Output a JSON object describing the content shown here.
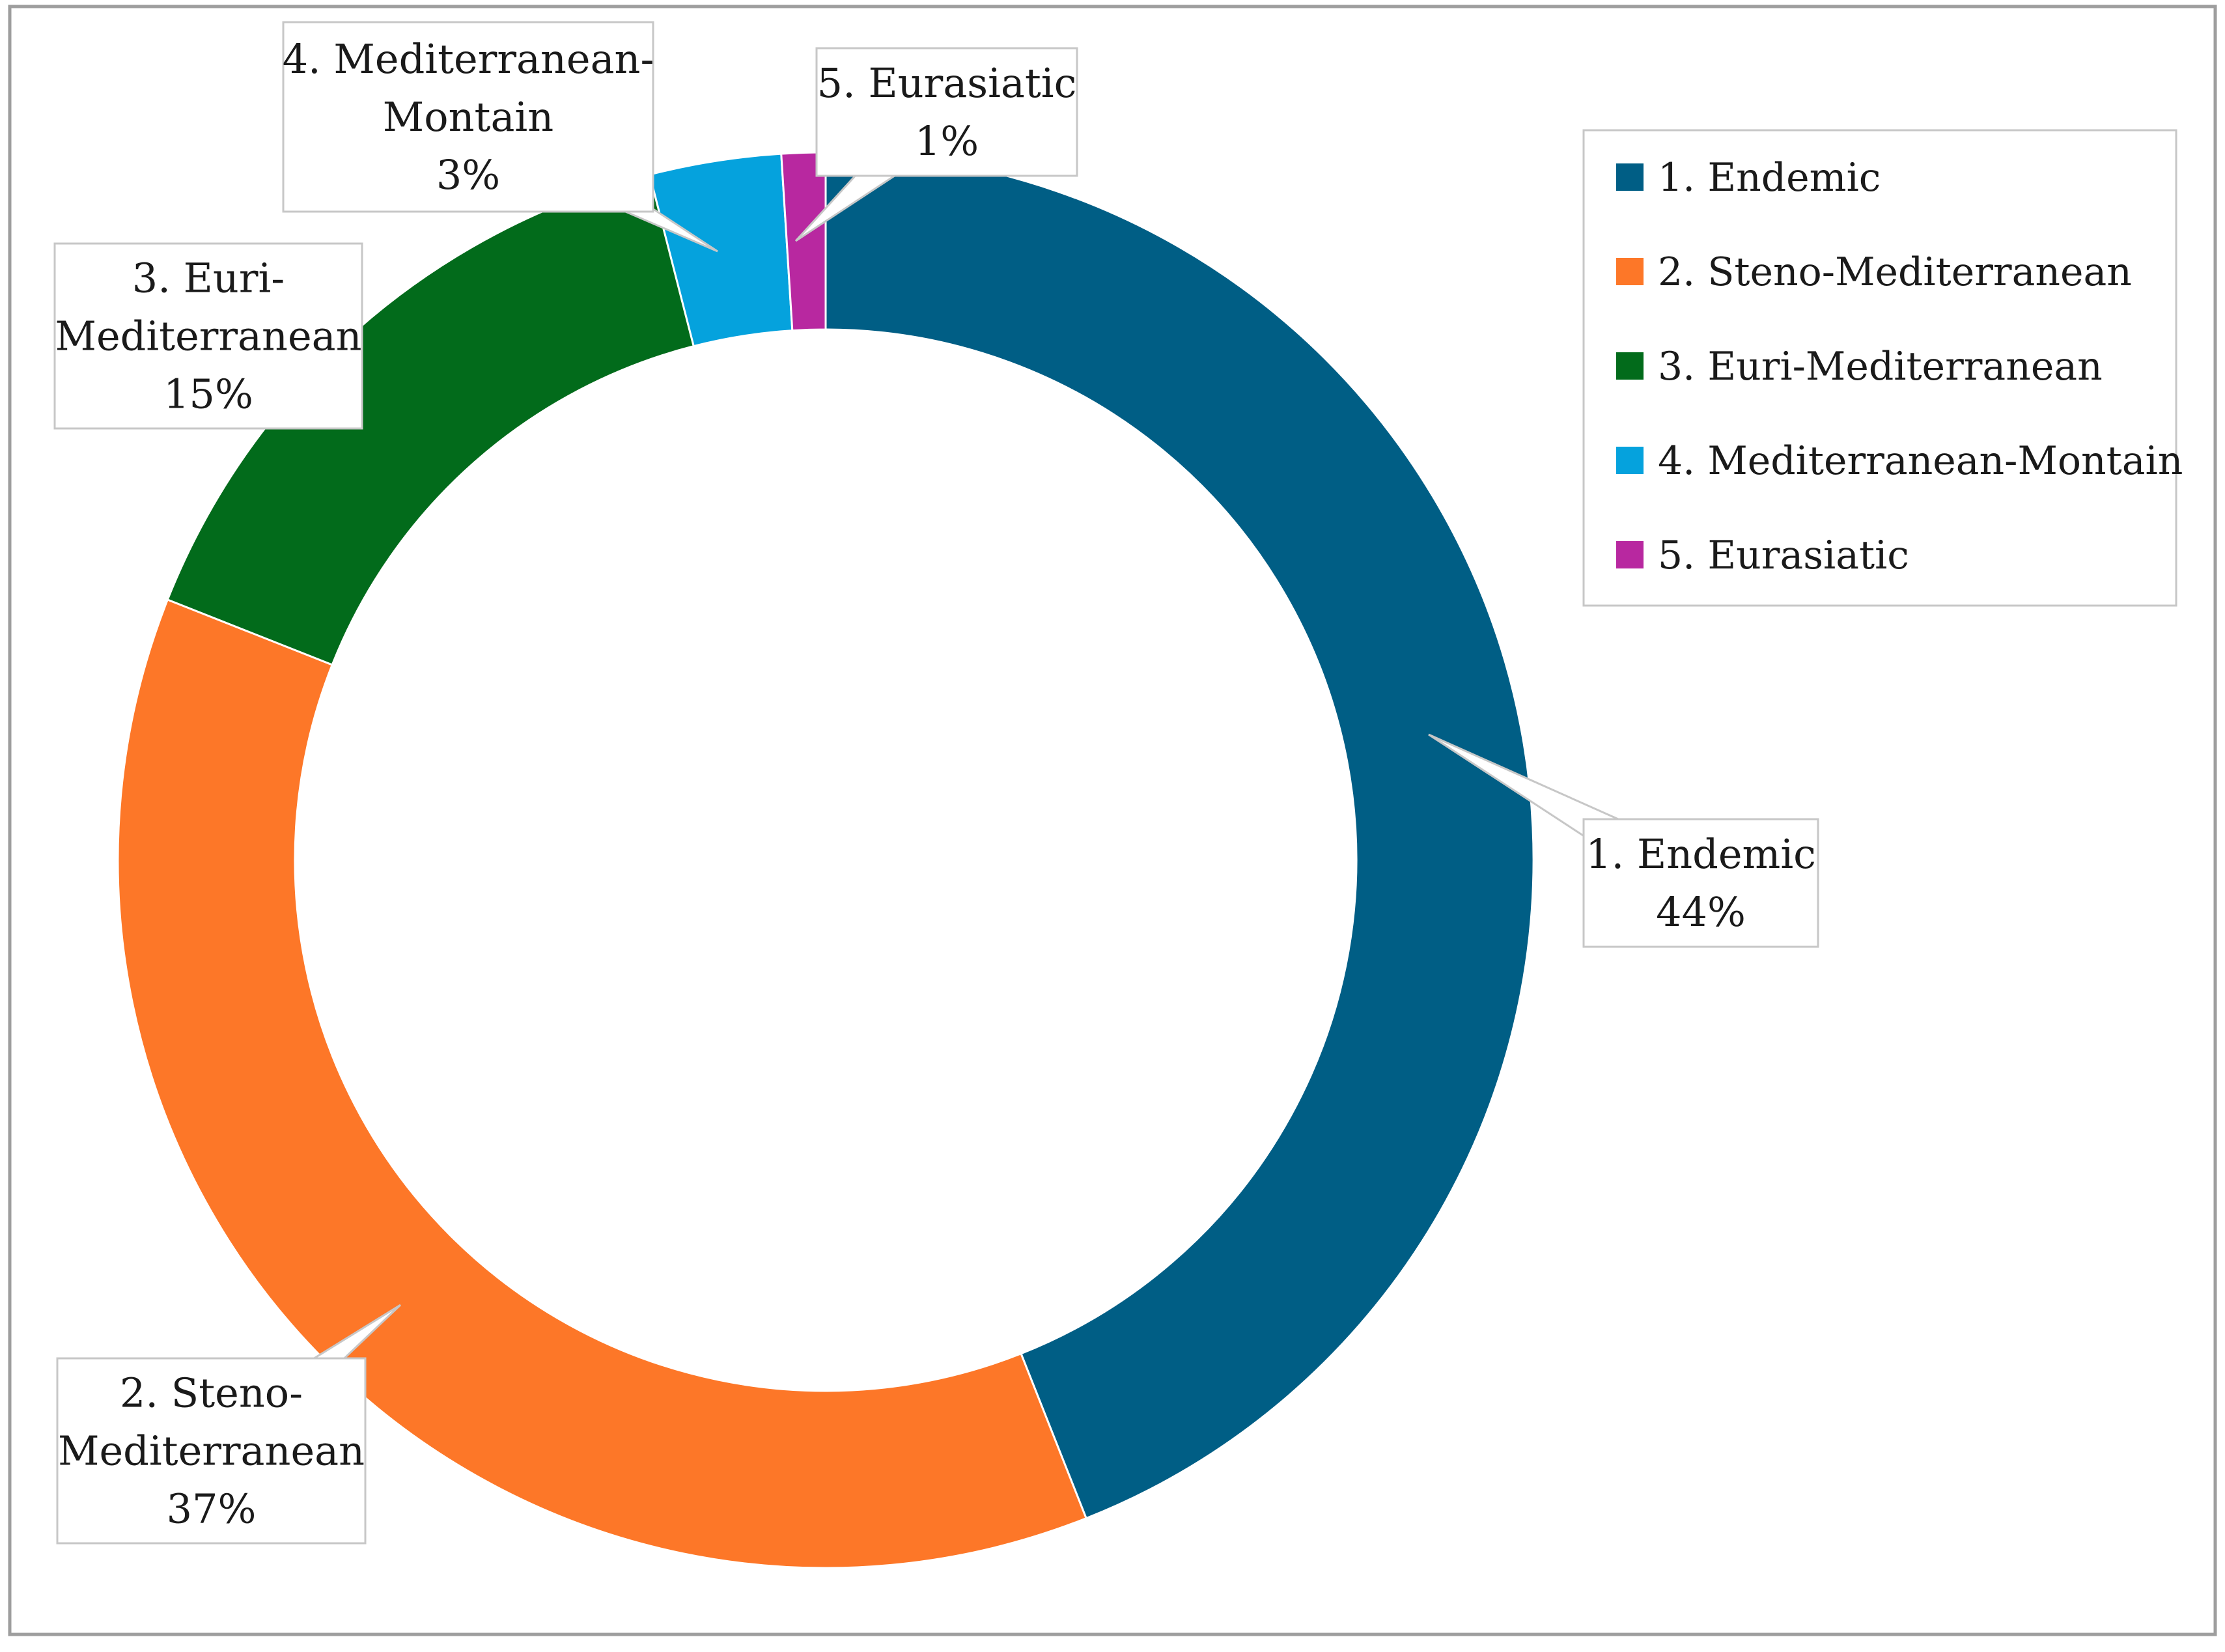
{
  "chart_data": {
    "type": "pie",
    "subtype": "doughnut",
    "categories": [
      "1. Endemic",
      "2. Steno-Mediterranean",
      "3. Euri-Mediterranean",
      "4. Mediterranean-Montain",
      "5. Eurasiatic"
    ],
    "values": [
      44,
      37,
      15,
      3,
      1
    ],
    "unit": "%",
    "colors": [
      "#005e85",
      "#fd7728",
      "#026b1b",
      "#05a2dd",
      "#b828a0"
    ],
    "data_labels": [
      {
        "lines": [
          "1. Endemic",
          "44%"
        ]
      },
      {
        "lines": [
          "2. Steno-",
          "Mediterranean",
          "37%"
        ]
      },
      {
        "lines": [
          "3. Euri-",
          "Mediterranean",
          "15%"
        ]
      },
      {
        "lines": [
          "4. Mediterranean-",
          "Montain",
          "3%"
        ]
      },
      {
        "lines": [
          "5. Eurasiatic",
          "1%"
        ]
      }
    ],
    "legend": {
      "position": "top-right",
      "entries": [
        "1. Endemic",
        "2. Steno-Mediterranean",
        "3. Euri-Mediterranean",
        "4. Mediterranean-Montain",
        "5. Eurasiatic"
      ]
    },
    "title": ""
  }
}
